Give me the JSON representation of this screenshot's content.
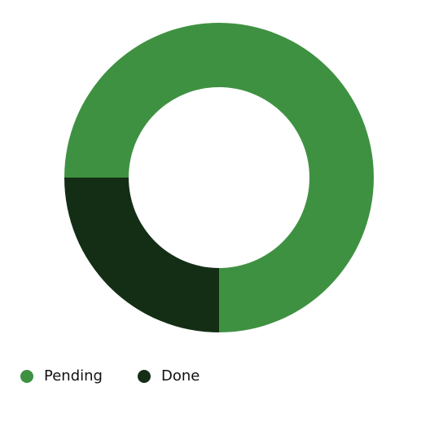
{
  "chart_data": {
    "type": "donut",
    "categories": [
      "Pending",
      "Done"
    ],
    "values": [
      75,
      25
    ],
    "colors": [
      "#3f9142",
      "#142e16"
    ],
    "legend": "bottom-left"
  }
}
